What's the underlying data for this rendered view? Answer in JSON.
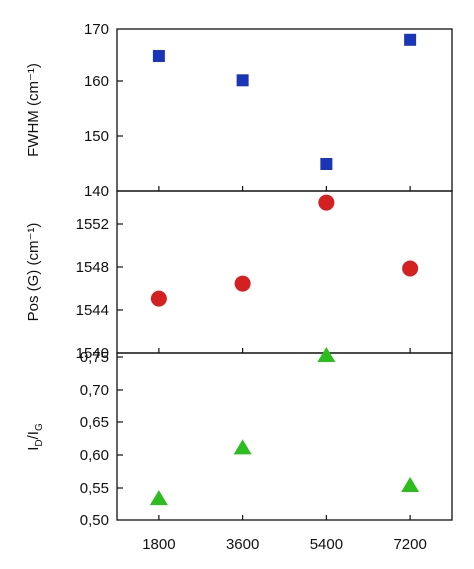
{
  "chart_data": [
    {
      "type": "scatter",
      "ylabel": "FWHM (cm⁻¹)",
      "ylim": [
        140,
        170
      ],
      "yticks": [
        "140",
        "150",
        "160",
        "170"
      ],
      "xticks": [
        "1800",
        "3600",
        "5400",
        "7200"
      ],
      "xlim": [
        900,
        8100
      ],
      "marker": "square",
      "color": "#1a35b5",
      "x": [
        1800,
        3600,
        5400,
        7200
      ],
      "y": [
        165,
        160.5,
        145,
        168
      ]
    },
    {
      "type": "scatter",
      "ylabel": "Pos (G) (cm⁻¹)",
      "ylim": [
        1540,
        1554
      ],
      "yticks": [
        "1540",
        "1544",
        "1548",
        "1552"
      ],
      "xticks": [
        "1800",
        "3600",
        "5400",
        "7200"
      ],
      "xlim": [
        900,
        8100
      ],
      "marker": "circle",
      "color": "#d42020",
      "x": [
        1800,
        3600,
        5400,
        7200
      ],
      "y": [
        1544.7,
        1546.0,
        1553.0,
        1547.3
      ]
    },
    {
      "type": "scatter",
      "ylabel_main": "I",
      "ylabel_sub1": "D",
      "ylabel_slash": "/I",
      "ylabel_sub2": "G",
      "ylim": [
        0.5,
        0.78
      ],
      "yticks": [
        "0,50",
        "0,55",
        "0,60",
        "0,65",
        "0,70",
        "0,75"
      ],
      "ytick_values": [
        0.5,
        0.55,
        0.6,
        0.65,
        0.7,
        0.75
      ],
      "xticks": [
        "1800",
        "3600",
        "5400",
        "7200"
      ],
      "xlim": [
        900,
        8100
      ],
      "marker": "triangle",
      "color": "#2ebd1e",
      "x": [
        1800,
        3600,
        5400,
        7200
      ],
      "y": [
        0.535,
        0.62,
        0.775,
        0.557
      ]
    }
  ]
}
